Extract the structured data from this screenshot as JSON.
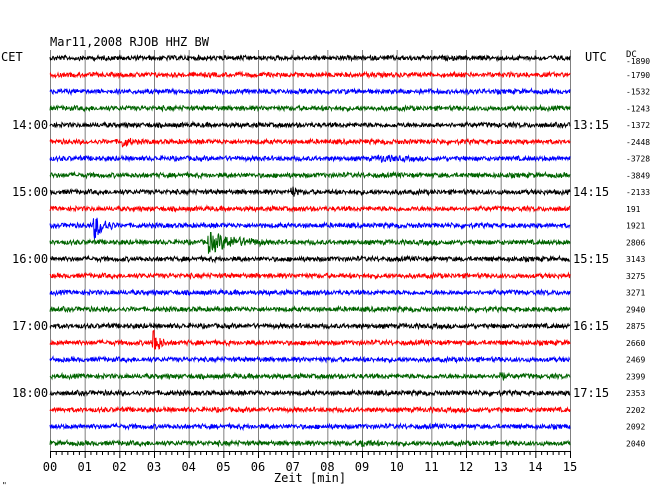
{
  "header": {
    "title": "Mar11,2008  RJOB HHZ BW",
    "left_zone": "CET",
    "right_zone": "UTC",
    "dc_label": "DC"
  },
  "footer": {
    "corner_mark": "\""
  },
  "colors": {
    "background": "#ffffff",
    "grid": "#808080",
    "trace_cycle": [
      "#000000",
      "#ff0000",
      "#0000ff",
      "#006400"
    ]
  },
  "chart_data": {
    "type": "seismogram",
    "xlabel": "Zeit [min]",
    "xlim": [
      0,
      15
    ],
    "x_ticks": [
      "00",
      "01",
      "02",
      "03",
      "04",
      "05",
      "06",
      "07",
      "08",
      "09",
      "10",
      "11",
      "12",
      "13",
      "14",
      "15"
    ],
    "trace_count": 24,
    "minutes_per_trace": 15,
    "left_hour_labels": [
      {
        "trace": 4,
        "label": "14:00"
      },
      {
        "trace": 8,
        "label": "15:00"
      },
      {
        "trace": 12,
        "label": "16:00"
      },
      {
        "trace": 16,
        "label": "17:00"
      },
      {
        "trace": 20,
        "label": "18:00"
      }
    ],
    "right_hour_labels": [
      {
        "trace": 4,
        "label": "13:15"
      },
      {
        "trace": 8,
        "label": "14:15"
      },
      {
        "trace": 12,
        "label": "15:15"
      },
      {
        "trace": 16,
        "label": "16:15"
      },
      {
        "trace": 20,
        "label": "17:15"
      }
    ],
    "dc_offsets": [
      "-1890",
      "-1790",
      "-1532",
      "-1243",
      "-1372",
      "-2448",
      "-3728",
      "-3849",
      "-2133",
      "191",
      "1921",
      "2806",
      "3143",
      "3275",
      "3271",
      "2940",
      "2875",
      "2660",
      "2469",
      "2399",
      "2353",
      "2202",
      "2092",
      "2040"
    ],
    "events": [
      {
        "trace": 5,
        "minute": 2.1,
        "amplitude": 0.5,
        "duration": 0.4
      },
      {
        "trace": 6,
        "minute": 9.5,
        "amplitude": 0.25,
        "duration": 1.0
      },
      {
        "trace": 8,
        "minute": 7.0,
        "amplitude": 0.5,
        "duration": 0.2
      },
      {
        "trace": 10,
        "minute": 1.3,
        "amplitude": 1.3,
        "duration": 0.6
      },
      {
        "trace": 11,
        "minute": 4.6,
        "amplitude": 1.0,
        "duration": 1.6
      },
      {
        "trace": 17,
        "minute": 3.0,
        "amplitude": 1.6,
        "duration": 0.3
      },
      {
        "trace": 19,
        "minute": 13.0,
        "amplitude": 0.8,
        "duration": 0.15
      },
      {
        "trace": 23,
        "minute": 9.0,
        "amplitude": 0.3,
        "duration": 0.5
      }
    ]
  }
}
